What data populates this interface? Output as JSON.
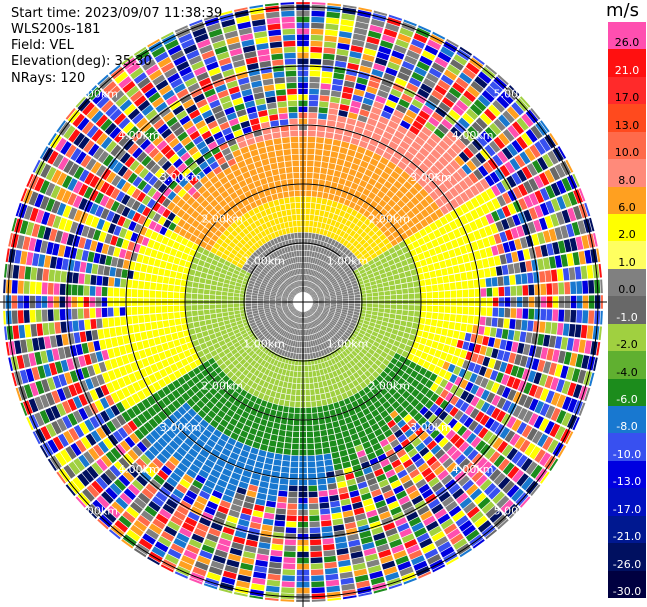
{
  "header": {
    "start_time": "Start time: 2023/09/07 11:38:39",
    "site": "WLS200s-181",
    "field": "Field: VEL",
    "elevation": "Elevation(deg): 35.30",
    "nrays": "NRays: 120"
  },
  "colorbar": {
    "unit": "m/s",
    "levels": [
      {
        "label": "26.0",
        "color": "#ff4fb0",
        "text": "#000000"
      },
      {
        "label": "21.0",
        "color": "#ff1010",
        "text": "#ffffff"
      },
      {
        "label": "17.0",
        "color": "#ff2a2a",
        "text": "#000000"
      },
      {
        "label": "13.0",
        "color": "#ff4a1e",
        "text": "#000000"
      },
      {
        "label": "10.0",
        "color": "#ff6a4a",
        "text": "#000000"
      },
      {
        "label": "8.0",
        "color": "#ff8a7a",
        "text": "#000000"
      },
      {
        "label": "6.0",
        "color": "#ffa020",
        "text": "#000000"
      },
      {
        "label": "2.0",
        "color": "#ffff00",
        "text": "#000000"
      },
      {
        "label": "1.0",
        "color": "#ffff60",
        "text": "#000000"
      },
      {
        "label": "0.0",
        "color": "#808080",
        "text": "#000000"
      },
      {
        "label": "-1.0",
        "color": "#686868",
        "text": "#ffffff"
      },
      {
        "label": "-2.0",
        "color": "#a0d040",
        "text": "#000000"
      },
      {
        "label": "-4.0",
        "color": "#60b030",
        "text": "#000000"
      },
      {
        "label": "-6.0",
        "color": "#1c8c1c",
        "text": "#ffffff"
      },
      {
        "label": "-8.0",
        "color": "#1878d0",
        "text": "#ffffff"
      },
      {
        "label": "-10.0",
        "color": "#3850f0",
        "text": "#ffffff"
      },
      {
        "label": "-13.0",
        "color": "#0000e0",
        "text": "#ffffff"
      },
      {
        "label": "-17.0",
        "color": "#0010c0",
        "text": "#ffffff"
      },
      {
        "label": "-21.0",
        "color": "#001890",
        "text": "#ffffff"
      },
      {
        "label": "-26.0",
        "color": "#001060",
        "text": "#ffffff"
      },
      {
        "label": "-30.0",
        "color": "#000040",
        "text": "#ffffff"
      }
    ]
  },
  "range_rings": [
    {
      "label": "1.00km"
    },
    {
      "label": "2.00km"
    },
    {
      "label": "3.00km"
    },
    {
      "label": "4.00km"
    },
    {
      "label": "5.00km"
    }
  ],
  "colors": {
    "near_field": [
      "#ffff00",
      "#ffe000",
      "#ffa020",
      "#ff8a7a",
      "#808080",
      "#a0d040",
      "#1c8c1c",
      "#1878d0"
    ],
    "noise": [
      "#ff4fb0",
      "#ff1010",
      "#ff6a4a",
      "#ffa020",
      "#ffff00",
      "#a0d040",
      "#1c8c1c",
      "#1878d0",
      "#3850f0",
      "#0000e0",
      "#001060",
      "#808080",
      "#686868"
    ]
  }
}
